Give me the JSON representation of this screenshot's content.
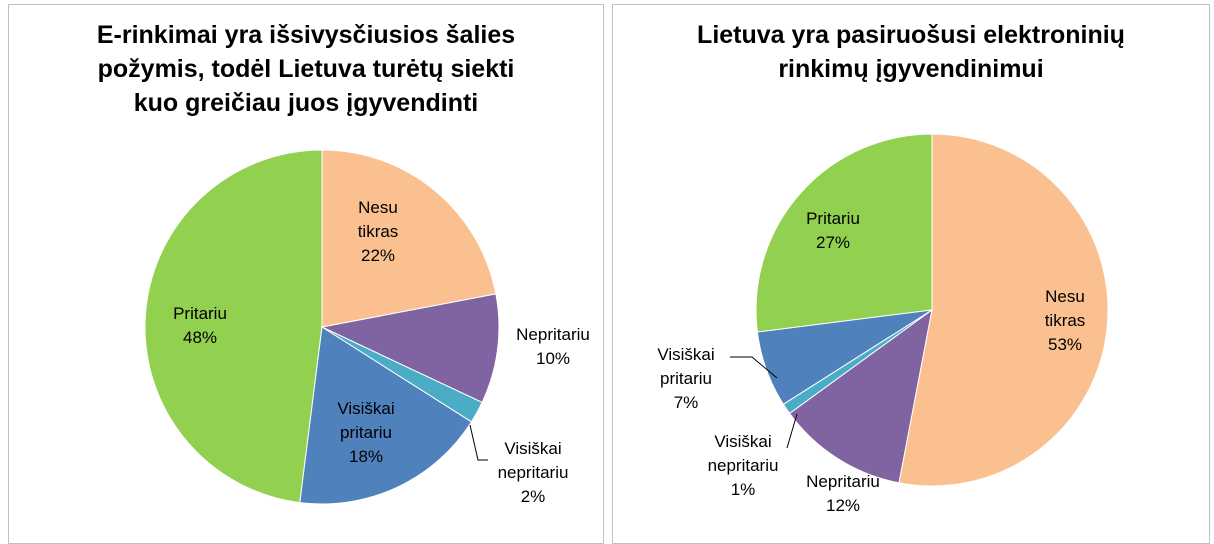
{
  "chart_data": [
    {
      "type": "pie",
      "title": "E-rinkimai yra išsivysčiusios šalies požymis, todėl Lietuva turėtų siekti kuo greičiau juos įgyvendinti",
      "categories": [
        "Nesu tikras",
        "Nepritariu",
        "Visiškai nepritariu",
        "Visiškai pritariu",
        "Pritariu"
      ],
      "values": [
        22,
        10,
        2,
        18,
        48
      ],
      "value_labels": [
        "22%",
        "10%",
        "2%",
        "18%",
        "48%"
      ],
      "colors": [
        "#fac090",
        "#8064a2",
        "#4bacc6",
        "#4f81bd",
        "#92d050"
      ]
    },
    {
      "type": "pie",
      "title": "Lietuva yra pasiruošusi elektroninių rinkimų įgyvendinimui",
      "categories": [
        "Nesu tikras",
        "Nepritariu",
        "Visiškai nepritariu",
        "Visiškai pritariu",
        "Pritariu"
      ],
      "values": [
        53,
        12,
        1,
        7,
        27
      ],
      "value_labels": [
        "53%",
        "12%",
        "1%",
        "7%",
        "27%"
      ],
      "colors": [
        "#fac090",
        "#8064a2",
        "#4bacc6",
        "#4f81bd",
        "#92d050"
      ]
    }
  ]
}
